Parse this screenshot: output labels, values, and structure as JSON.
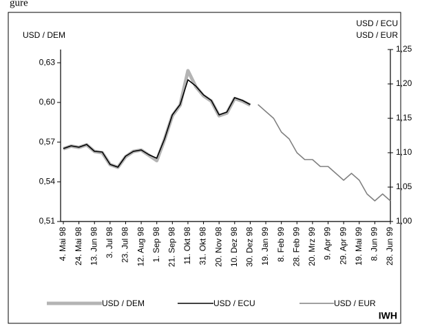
{
  "caption_fragment": "gure",
  "chart_data": {
    "type": "line",
    "y_label": "USD / DEM",
    "y2_labels": [
      "USD / ECU",
      "USD / EUR"
    ],
    "source": "IWH",
    "categories": [
      "4. Mai 98",
      null,
      "24. Mai 98",
      null,
      "13. Jun 98",
      null,
      "3. Jul 98",
      null,
      "23. Jul 98",
      null,
      "12. Aug 98",
      null,
      "1. Sep 98",
      null,
      "21. Sep 98",
      null,
      "11. Okt 98",
      null,
      "31. Okt 98",
      null,
      "20. Nov 98",
      null,
      "10. Dez 98",
      null,
      "30. Dez 98",
      null,
      "19. Jan 99",
      null,
      "8. Feb 99",
      null,
      "28. Feb 99",
      null,
      "20. Mrz 99",
      null,
      "9. Apr 99",
      null,
      "29. Apr 99",
      null,
      "19. Mai 99",
      null,
      "8. Jun 99",
      null,
      "28. Jun 99"
    ],
    "ylim": [
      0.51,
      0.64
    ],
    "yticks": [
      {
        "value": 0.51,
        "label": "0,51"
      },
      {
        "value": 0.54,
        "label": "0,54"
      },
      {
        "value": 0.57,
        "label": "0,57"
      },
      {
        "value": 0.6,
        "label": "0,60"
      },
      {
        "value": 0.63,
        "label": "0,63"
      }
    ],
    "y2lim": [
      1.0,
      1.25
    ],
    "y2ticks": [
      {
        "value": 1.0,
        "label": "1,00"
      },
      {
        "value": 1.05,
        "label": "1,05"
      },
      {
        "value": 1.1,
        "label": "1,10"
      },
      {
        "value": 1.15,
        "label": "1,15"
      },
      {
        "value": 1.2,
        "label": "1,20"
      },
      {
        "value": 1.25,
        "label": "1,25"
      }
    ],
    "legend": "bottom",
    "series": [
      {
        "name": "USD / DEM",
        "color": "#b4b4b4",
        "width": 5,
        "values": [
          0.565,
          0.567,
          0.566,
          0.568,
          0.563,
          0.562,
          0.553,
          0.551,
          0.559,
          0.563,
          0.564,
          0.56,
          0.556,
          0.572,
          0.59,
          0.598,
          0.624,
          0.612,
          0.605,
          0.601,
          0.59,
          0.592,
          0.603,
          0.601,
          0.598,
          null,
          null,
          null,
          null,
          null,
          null,
          null,
          null,
          null,
          null,
          null,
          null,
          null,
          null,
          null,
          null,
          null,
          null
        ]
      },
      {
        "name": "USD / ECU",
        "color": "#000000",
        "width": 1.6,
        "axis": "y2",
        "values": [
          1.106,
          1.11,
          1.108,
          1.112,
          1.102,
          1.101,
          1.083,
          1.079,
          1.095,
          1.102,
          1.104,
          1.097,
          1.092,
          1.12,
          1.155,
          1.17,
          1.206,
          1.197,
          1.184,
          1.176,
          1.155,
          1.159,
          1.18,
          1.176,
          1.17,
          null,
          null,
          null,
          null,
          null,
          null,
          null,
          null,
          null,
          null,
          null,
          null,
          null,
          null,
          null,
          null,
          null,
          null
        ]
      },
      {
        "name": "USD / EUR",
        "color": "#808080",
        "width": 1.6,
        "axis": "y2",
        "values": [
          null,
          null,
          null,
          null,
          null,
          null,
          null,
          null,
          null,
          null,
          null,
          null,
          null,
          null,
          null,
          null,
          null,
          null,
          null,
          null,
          null,
          null,
          null,
          null,
          null,
          1.17,
          1.16,
          1.15,
          1.13,
          1.12,
          1.1,
          1.09,
          1.09,
          1.08,
          1.08,
          1.07,
          1.06,
          1.07,
          1.06,
          1.04,
          1.03,
          1.04,
          1.03
        ]
      }
    ]
  }
}
